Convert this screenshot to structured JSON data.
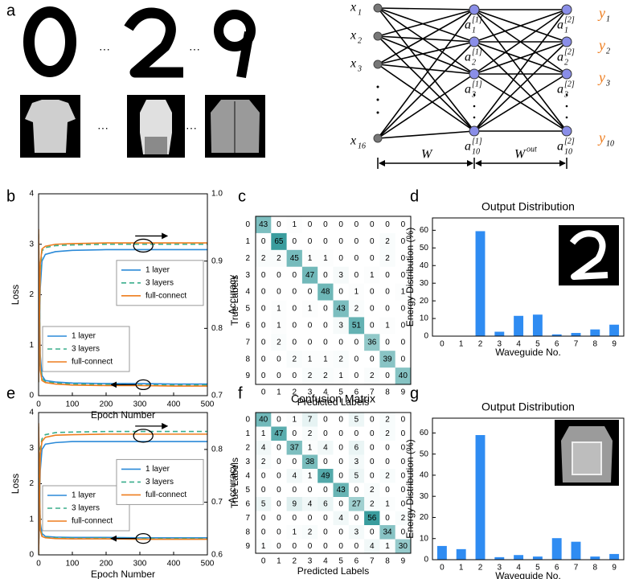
{
  "panel_labels": [
    "a",
    "b",
    "c",
    "d",
    "e",
    "f",
    "g"
  ],
  "network": {
    "ellipsis": "···",
    "inputs": [
      {
        "base": "x",
        "sub": "1"
      },
      {
        "base": "x",
        "sub": "2"
      },
      {
        "base": "x",
        "sub": "3"
      },
      {
        "base": "x",
        "sub": "16"
      }
    ],
    "hidden": [
      {
        "base": "a",
        "sup": "[1]",
        "sub": "1"
      },
      {
        "base": "a",
        "sup": "[1]",
        "sub": "2"
      },
      {
        "base": "a",
        "sup": "[1]",
        "sub": "3"
      },
      {
        "base": "a",
        "sup": "[1]",
        "sub": "10"
      }
    ],
    "output_nodes": [
      {
        "base": "a",
        "sup": "[2]",
        "sub": "1"
      },
      {
        "base": "a",
        "sup": "[2]",
        "sub": "2"
      },
      {
        "base": "a",
        "sup": "[2]",
        "sub": "3"
      },
      {
        "base": "a",
        "sup": "[2]",
        "sub": "10"
      }
    ],
    "outputs": [
      {
        "base": "y",
        "sub": "1"
      },
      {
        "base": "y",
        "sub": "2"
      },
      {
        "base": "y",
        "sub": "3"
      },
      {
        "base": "y",
        "sub": "10"
      }
    ],
    "weights": [
      {
        "base": "W"
      },
      {
        "base": "W",
        "sup": "out"
      }
    ]
  },
  "chart_data": [
    {
      "type": "line",
      "xlabel": "Epoch Number",
      "ylabel": "Loss",
      "y2label": "Accuracy",
      "x": [
        0,
        5,
        10,
        20,
        50,
        100,
        200,
        300,
        400,
        500
      ],
      "xlim": [
        0,
        500
      ],
      "xticks": [
        0,
        100,
        200,
        300,
        400,
        500
      ],
      "ylim": [
        0,
        4
      ],
      "yticks": [
        0,
        1,
        2,
        3,
        4
      ],
      "y2lim": [
        0.7,
        1.0
      ],
      "y2ticks": [
        0.7,
        0.8,
        0.9,
        {
          "value": 1.0,
          "label": "1.0"
        }
      ],
      "legend": "lower left",
      "y2legend": "center right",
      "series": [
        {
          "name": "1 layer",
          "color": "#2b8ad8",
          "values": [
            3.0,
            0.8,
            0.4,
            0.3,
            0.27,
            0.25,
            0.24,
            0.24,
            0.23,
            0.23
          ]
        },
        {
          "name": "3 layers",
          "color": "#3aae8c",
          "dash": true,
          "values": [
            3.2,
            0.6,
            0.35,
            0.28,
            0.25,
            0.23,
            0.22,
            0.21,
            0.21,
            0.21
          ]
        },
        {
          "name": "full-connect",
          "color": "#ee7d1e",
          "values": [
            3.3,
            0.5,
            0.3,
            0.26,
            0.23,
            0.21,
            0.2,
            0.2,
            0.19,
            0.19
          ]
        },
        {
          "name": "1 layer",
          "color": "#2b8ad8",
          "axis": "y2",
          "values": [
            0.72,
            0.86,
            0.9,
            0.91,
            0.914,
            0.916,
            0.917,
            0.917,
            0.917,
            0.917
          ]
        },
        {
          "name": "3 layers",
          "color": "#3aae8c",
          "dash": true,
          "axis": "y2",
          "values": [
            0.72,
            0.88,
            0.915,
            0.92,
            0.923,
            0.924,
            0.925,
            0.925,
            0.925,
            0.925
          ]
        },
        {
          "name": "full-connect",
          "color": "#ee7d1e",
          "axis": "y2",
          "values": [
            0.72,
            0.895,
            0.918,
            0.922,
            0.925,
            0.926,
            0.927,
            0.927,
            0.927,
            0.927
          ]
        }
      ]
    },
    {
      "type": "heatmap",
      "xlabel": "Predicted Labels",
      "ylabel": "True Labels",
      "color": "#3a9d9e",
      "categories": [
        "0",
        "1",
        "2",
        "3",
        "4",
        "5",
        "6",
        "7",
        "8",
        "9"
      ],
      "values": [
        [
          43,
          0,
          1,
          0,
          0,
          0,
          0,
          0,
          0,
          0
        ],
        [
          0,
          65,
          0,
          0,
          0,
          0,
          0,
          0,
          2,
          0
        ],
        [
          2,
          2,
          45,
          1,
          1,
          0,
          0,
          0,
          2,
          0
        ],
        [
          0,
          0,
          0,
          47,
          0,
          3,
          0,
          1,
          0,
          0
        ],
        [
          0,
          0,
          0,
          0,
          48,
          0,
          1,
          0,
          0,
          1
        ],
        [
          0,
          1,
          0,
          1,
          0,
          43,
          2,
          0,
          0,
          0
        ],
        [
          0,
          1,
          0,
          0,
          0,
          3,
          51,
          0,
          1,
          0
        ],
        [
          0,
          2,
          0,
          0,
          0,
          0,
          0,
          36,
          0,
          0
        ],
        [
          0,
          0,
          2,
          1,
          1,
          2,
          0,
          0,
          39,
          0
        ],
        [
          0,
          0,
          0,
          2,
          2,
          1,
          0,
          2,
          0,
          40
        ]
      ]
    },
    {
      "type": "bar",
      "title": "Output Distribution",
      "xlabel": "Waveguide No.",
      "ylabel": "Energy Distribution (%)",
      "color": "#2f8cf2",
      "categories": [
        "0",
        "1",
        "2",
        "3",
        "4",
        "5",
        "6",
        "7",
        "8",
        "9"
      ],
      "values": [
        0.2,
        0.2,
        59.5,
        2.5,
        11.5,
        12.2,
        1.0,
        1.8,
        3.8,
        6.5
      ],
      "ylim": [
        0,
        67
      ],
      "yticks": [
        0,
        10,
        20,
        30,
        40,
        50,
        60
      ]
    },
    {
      "type": "line",
      "xlabel": "Epoch Number",
      "ylabel": "Loss",
      "y2label": "Accuracy",
      "x": [
        0,
        5,
        10,
        20,
        50,
        100,
        200,
        300,
        400,
        500
      ],
      "xlim": [
        0,
        500
      ],
      "xticks": [
        0,
        100,
        200,
        300,
        400,
        500
      ],
      "ylim": [
        0,
        4
      ],
      "yticks": [
        0,
        1,
        2,
        3,
        4
      ],
      "y2lim": [
        0.6,
        0.87
      ],
      "y2ticks": [
        0.6,
        0.7,
        0.8
      ],
      "legend": "lower left",
      "y2legend": "center right",
      "series": [
        {
          "name": "1 layer",
          "color": "#2b8ad8",
          "values": [
            3.5,
            0.9,
            0.6,
            0.52,
            0.5,
            0.49,
            0.49,
            0.48,
            0.48,
            0.48
          ]
        },
        {
          "name": "3 layers",
          "color": "#3aae8c",
          "dash": true,
          "values": [
            3.6,
            0.8,
            0.55,
            0.5,
            0.48,
            0.47,
            0.47,
            0.46,
            0.46,
            0.46
          ]
        },
        {
          "name": "full-connect",
          "color": "#ee7d1e",
          "values": [
            3.7,
            0.7,
            0.52,
            0.48,
            0.46,
            0.45,
            0.45,
            0.44,
            0.44,
            0.44
          ]
        },
        {
          "name": "1 layer",
          "color": "#2b8ad8",
          "axis": "y2",
          "values": [
            0.6,
            0.76,
            0.8,
            0.81,
            0.813,
            0.815,
            0.815,
            0.815,
            0.815,
            0.815
          ]
        },
        {
          "name": "3 layers",
          "color": "#3aae8c",
          "dash": true,
          "axis": "y2",
          "values": [
            0.6,
            0.8,
            0.82,
            0.828,
            0.832,
            0.833,
            0.834,
            0.834,
            0.834,
            0.834
          ]
        },
        {
          "name": "full-connect",
          "color": "#ee7d1e",
          "axis": "y2",
          "values": [
            0.6,
            0.79,
            0.815,
            0.823,
            0.827,
            0.828,
            0.829,
            0.829,
            0.829,
            0.829
          ]
        }
      ]
    },
    {
      "type": "heatmap",
      "title": "Confusion Matrix",
      "xlabel": "Predicted Labels",
      "ylabel": "True Labels",
      "color": "#3a9d9e",
      "categories": [
        "0",
        "1",
        "2",
        "3",
        "4",
        "5",
        "6",
        "7",
        "8",
        "9"
      ],
      "values": [
        [
          40,
          0,
          1,
          7,
          0,
          0,
          5,
          0,
          2,
          0
        ],
        [
          1,
          47,
          0,
          2,
          0,
          0,
          0,
          0,
          2,
          0
        ],
        [
          4,
          0,
          37,
          1,
          4,
          0,
          6,
          0,
          0,
          0
        ],
        [
          2,
          0,
          0,
          38,
          0,
          0,
          3,
          0,
          0,
          0
        ],
        [
          0,
          0,
          4,
          1,
          49,
          0,
          5,
          0,
          2,
          0
        ],
        [
          0,
          0,
          0,
          0,
          0,
          43,
          0,
          2,
          0,
          0
        ],
        [
          5,
          0,
          9,
          4,
          6,
          0,
          27,
          2,
          1,
          0
        ],
        [
          0,
          0,
          0,
          0,
          0,
          4,
          0,
          56,
          0,
          2
        ],
        [
          0,
          0,
          1,
          2,
          0,
          0,
          3,
          0,
          34,
          0
        ],
        [
          1,
          0,
          0,
          0,
          0,
          0,
          0,
          4,
          1,
          30
        ]
      ]
    },
    {
      "type": "bar",
      "title": "Output Distribution",
      "xlabel": "Waveguide No.",
      "ylabel": "Energy Distribution (%)",
      "color": "#2f8cf2",
      "categories": [
        "0",
        "1",
        "2",
        "3",
        "4",
        "5",
        "6",
        "7",
        "8",
        "9"
      ],
      "values": [
        6.5,
        5.0,
        59.0,
        1.2,
        2.2,
        1.5,
        10.2,
        8.5,
        1.5,
        2.7
      ],
      "ylim": [
        0,
        67
      ],
      "yticks": [
        0,
        10,
        20,
        30,
        40,
        50,
        60
      ]
    }
  ]
}
